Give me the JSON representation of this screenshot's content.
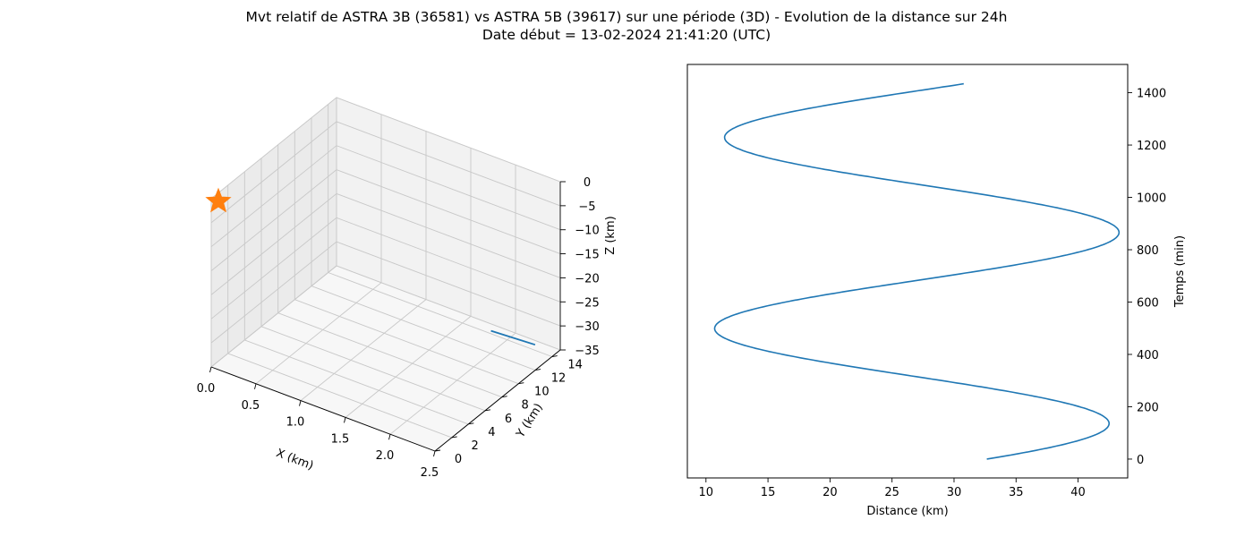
{
  "figure": {
    "title_line1": "Mvt relatif de ASTRA 3B (36581) vs ASTRA 5B (39617) sur une période (3D) - Evolution de la distance sur 24h",
    "title_line2": "Date début = 13-02-2024 21:41:20 (UTC)"
  },
  "chart_data": [
    {
      "type": "line3d",
      "xlabel": "X (km)",
      "ylabel": "Y (km)",
      "zlabel": "Z (km)",
      "xlim": [
        0.0,
        2.5
      ],
      "ylim": [
        0,
        15
      ],
      "zlim": [
        -35,
        0
      ],
      "xticks": [
        "0.0",
        "0.5",
        "1.0",
        "1.5",
        "2.0",
        "2.5"
      ],
      "yticks": [
        "0",
        "2",
        "4",
        "6",
        "8",
        "10",
        "12",
        "14"
      ],
      "zticks": [
        "0",
        "−5",
        "−10",
        "−15",
        "−20",
        "−25",
        "−30",
        "−35"
      ],
      "grid": true,
      "pane_color": "#f2f2f2",
      "series": [
        {
          "color": "#1f77b4",
          "points": [
            {
              "x": 1.95,
              "y": 12.6,
              "z": -31.5
            },
            {
              "x": 2.35,
              "y": 13.6,
              "z": -33.0
            }
          ]
        }
      ],
      "marker": {
        "shape": "star",
        "color": "#ff7f0e",
        "x": 0.0,
        "y": 0.0,
        "z": 0.0
      }
    },
    {
      "type": "line",
      "xlabel": "Distance (km)",
      "ylabel": "Temps (min)",
      "ylabel_side": "right",
      "xlim": [
        8.5,
        44.0
      ],
      "ylim": [
        -72,
        1508
      ],
      "xticks": [
        "10",
        "15",
        "20",
        "25",
        "30",
        "35",
        "40"
      ],
      "yticks": [
        "0",
        "200",
        "400",
        "600",
        "800",
        "1000",
        "1200",
        "1400"
      ],
      "grid": false,
      "series": [
        {
          "color": "#1f77b4",
          "distance_mean": 26.25,
          "distance_amplitude": 16.1,
          "distance_phase_deg": 23.4,
          "period_min": 730,
          "distance_trend_km_per_min": 0.0011,
          "t_start": 0,
          "t_end": 1435
        }
      ]
    }
  ]
}
